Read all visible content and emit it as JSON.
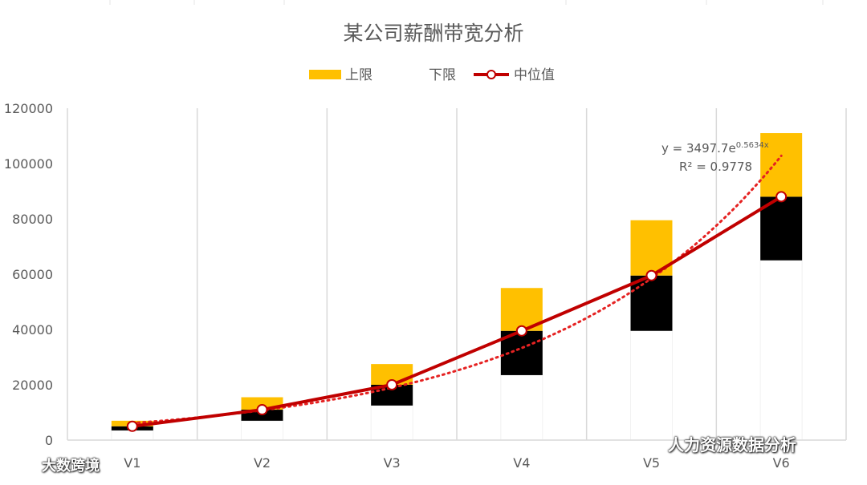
{
  "chart_data": {
    "type": "bar",
    "title": "某公司薪酬带宽分析",
    "categories": [
      "V1",
      "V2",
      "V3",
      "V4",
      "V5",
      "V6"
    ],
    "ylim": [
      0,
      120000
    ],
    "yticks": [
      0,
      20000,
      40000,
      60000,
      80000,
      100000,
      120000
    ],
    "ytick_labels": [
      "0",
      "20000",
      "40000",
      "60000",
      "80000",
      "100000",
      "120000"
    ],
    "grid": "vertical",
    "legend_position": "top",
    "series": [
      {
        "name": "下限",
        "color": "#ffffff",
        "values": [
          3500,
          7000,
          12500,
          23500,
          39500,
          65000
        ]
      },
      {
        "name": "中位值",
        "color": "#000000",
        "values": [
          5000,
          11000,
          20000,
          39500,
          59500,
          88000
        ]
      },
      {
        "name": "上限",
        "color": "#ffc000",
        "values": [
          7000,
          15500,
          27500,
          55000,
          79500,
          111000
        ]
      }
    ],
    "median_line": {
      "name": "中位值",
      "color": "#c00000",
      "values": [
        5000,
        11000,
        20000,
        39500,
        59500,
        88000
      ]
    },
    "trendline": {
      "color": "#e52222",
      "equation_prefix": "y = 3497.7e",
      "equation_exponent": "0.5634x",
      "r_squared": "R² = 0.9778"
    },
    "legend": [
      {
        "label": "上限",
        "kind": "swatch",
        "color": "#ffc000"
      },
      {
        "label": "下限",
        "kind": "swatch",
        "color": "#ffffff"
      },
      {
        "label": "中位值",
        "kind": "line-marker",
        "color": "#c00000"
      }
    ]
  },
  "watermarks": {
    "right": "人力资源数据分析",
    "left": "大数跨境"
  }
}
